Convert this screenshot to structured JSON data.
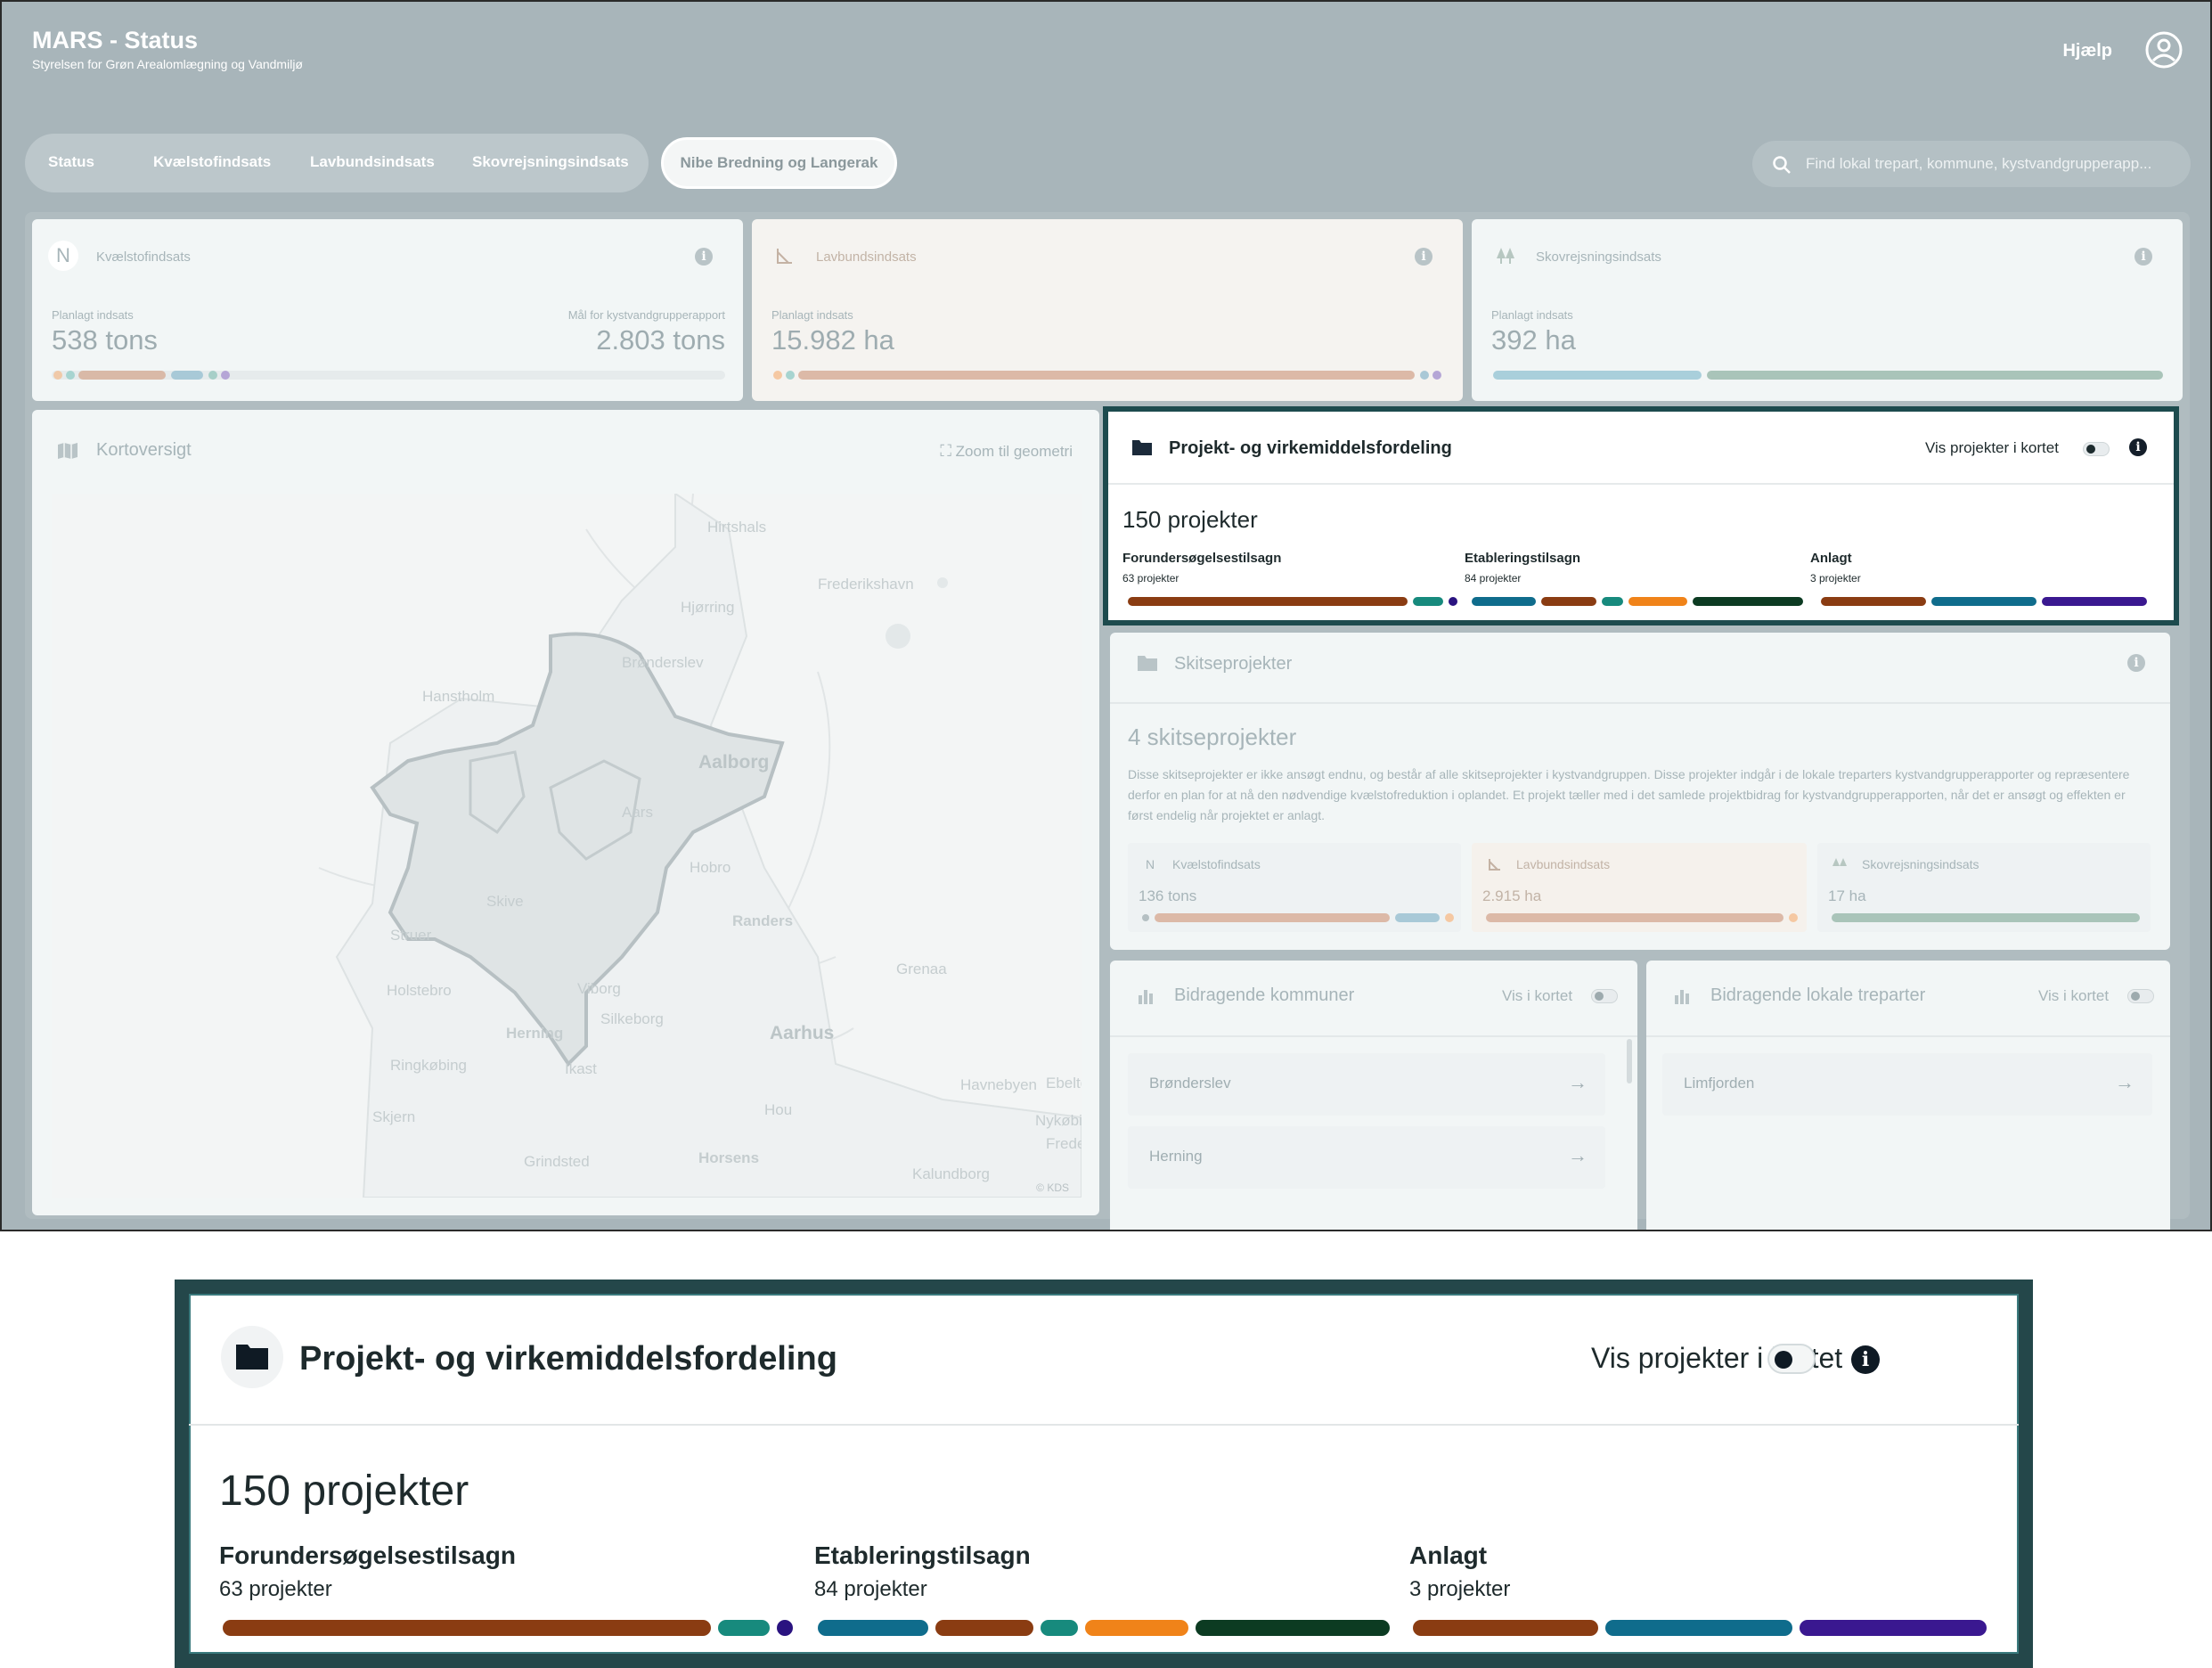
{
  "header": {
    "title": "MARS - Status",
    "subtitle": "Styrelsen for Grøn Arealomlægning og Vandmiljø",
    "help_label": "Hjælp"
  },
  "tabs": {
    "items": [
      "Status",
      "Kvælstofindsats",
      "Lavbundsindsats",
      "Skovrejsningsindsats"
    ],
    "active": "Nibe Bredning og Langerak"
  },
  "search": {
    "placeholder": "Find lokal trepart, kommune, kystvandgrupperapp..."
  },
  "kpis": [
    {
      "title": "Kvælstofindsats",
      "icon_letter": "N",
      "planned_label": "Planlagt indsats",
      "planned_value": "538 tons",
      "goal_label": "Mål for kystvandgrupperapport",
      "goal_value": "2.803 tons"
    },
    {
      "title": "Lavbundsindsats",
      "planned_label": "Planlagt indsats",
      "planned_value": "15.982 ha"
    },
    {
      "title": "Skovrejsningsindsats",
      "planned_label": "Planlagt indsats",
      "planned_value": "392 ha"
    }
  ],
  "map": {
    "title": "Kortoversigt",
    "zoom_label": "Zoom til geometri",
    "attribution": "© KDS",
    "places": [
      "Hirtshals",
      "Frederikshavn",
      "Hjørring",
      "Brønderslev",
      "Hanstholm",
      "Aalborg",
      "Aars",
      "Hobro",
      "Skive",
      "Randers",
      "Struer",
      "Grenaa",
      "Holstebro",
      "Viborg",
      "Silkeborg",
      "Herning",
      "Aarhus",
      "Ringkøbing",
      "Ikast",
      "Ebeltoft",
      "Skjern",
      "Hou",
      "Nykøbing",
      "Grindsted",
      "Horsens",
      "Kalundborg",
      "Havnebyen",
      "Fredensborg"
    ]
  },
  "projects": {
    "title": "Projekt- og virkemiddelsfordeling",
    "toggle_label": "Vis projekter i kortet",
    "count": "150 projekter",
    "groups": [
      {
        "name": "Forundersøgelsestilsagn",
        "count": "63 projekter"
      },
      {
        "name": "Etableringstilsagn",
        "count": "84 projekter"
      },
      {
        "name": "Anlagt",
        "count": "3 projekter"
      }
    ]
  },
  "sketch": {
    "title": "Skitseprojekter",
    "count": "4 skitseprojekter",
    "description": "Disse skitseprojekter er ikke ansøgt endnu, og består af alle skitseprojekter i kystvandgruppen. Disse projekter indgår i de lokale treparters kystvandgrupperapporter og repræsentere derfor en plan for at nå den nødvendige kvælstofreduktion i oplandet. Et projekt tæller med i det samlede projektbidrag for kystvandgrupperapporten, når det er ansøgt og effekten er først endelig når projektet er anlagt.",
    "kpis": [
      {
        "title": "Kvælstofindsats",
        "icon_letter": "N",
        "value": "136 tons"
      },
      {
        "title": "Lavbundsindsats",
        "value": "2.915 ha"
      },
      {
        "title": "Skovrejsningsindsats",
        "value": "17 ha"
      }
    ]
  },
  "municipalities": {
    "title": "Bidragende kommuner",
    "toggle_label": "Vis i kortet",
    "items": [
      "Brønderslev",
      "Herning"
    ]
  },
  "local_parties": {
    "title": "Bidragende lokale treparter",
    "toggle_label": "Vis i kortet",
    "items": [
      "Limfjorden"
    ]
  },
  "colors": {
    "brown": "#8a3c12",
    "teal": "#178a7d",
    "navy": "#2a1380",
    "blue": "#0f6c8c",
    "orange": "#f08319",
    "darkgreen": "#0c3b22",
    "purple": "#3a1890"
  }
}
